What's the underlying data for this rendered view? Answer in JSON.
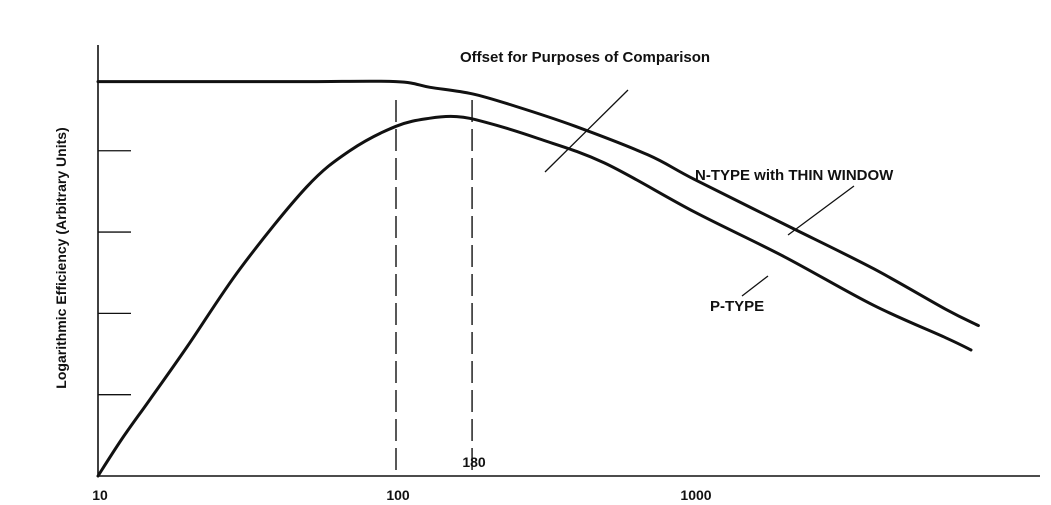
{
  "chart_data": {
    "type": "line",
    "x_scale": "log",
    "y_scale": "log",
    "xlabel": "",
    "ylabel": "Logarithmic Efficiency (Arbitrary Units)",
    "xlim": [
      10,
      9000
    ],
    "ylim": [
      0,
      5.3
    ],
    "x_ticks": [
      10,
      100,
      1000
    ],
    "x_tick_labels": [
      "10",
      "100",
      "1000"
    ],
    "y_ticks": [
      1,
      2,
      3,
      4
    ],
    "grid": false,
    "series": [
      {
        "name": "N-TYPE with THIN WINDOW",
        "x": [
          10,
          20,
          50,
          100,
          130,
          180,
          250,
          400,
          700,
          1000,
          2000,
          4000,
          7000,
          9000
        ],
        "y": [
          4.85,
          4.85,
          4.85,
          4.85,
          4.78,
          4.7,
          4.55,
          4.3,
          3.95,
          3.65,
          3.1,
          2.55,
          2.05,
          1.85
        ]
      },
      {
        "name": "P-TYPE",
        "x": [
          10,
          12,
          15,
          20,
          30,
          50,
          70,
          100,
          130,
          160,
          200,
          300,
          500,
          1000,
          2000,
          4000,
          7000,
          8500
        ],
        "y": [
          0.0,
          0.45,
          0.95,
          1.6,
          2.55,
          3.55,
          4.0,
          4.3,
          4.4,
          4.42,
          4.35,
          4.15,
          3.85,
          3.25,
          2.7,
          2.1,
          1.7,
          1.55
        ]
      }
    ],
    "reference_lines": [
      {
        "x": 100,
        "label": ""
      },
      {
        "x": 180,
        "label": "180"
      }
    ],
    "annotations": {
      "offset": "Offset for Purposes of Comparison",
      "n_type": "N-TYPE with THIN WINDOW",
      "p_type": "P-TYPE"
    }
  }
}
